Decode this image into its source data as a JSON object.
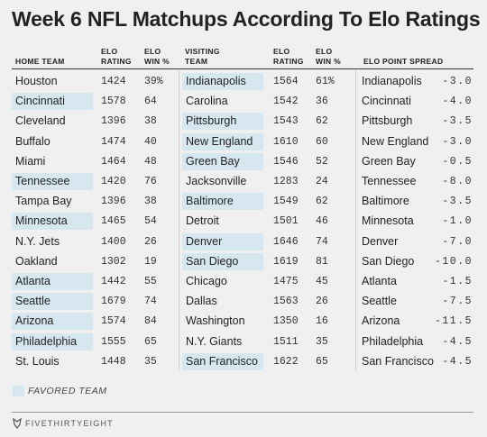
{
  "title": "Week 6 NFL Matchups According To Elo Ratings",
  "headers": {
    "home_team": "HOME TEAM",
    "elo_rating_home": "ELO\nRATING",
    "elo_win_home": "ELO\nWIN %",
    "visiting_team": "VISITING\nTEAM",
    "elo_rating_visit": "ELO\nRATING",
    "elo_win_visit": "ELO\nWIN %",
    "elo_point_spread": "ELO POINT SPREAD"
  },
  "chart_data": {
    "type": "table",
    "columns": [
      "Home team",
      "Elo rating",
      "Elo win %",
      "Visiting team",
      "Elo rating",
      "Elo win %",
      "Elo point spread"
    ],
    "rows": [
      {
        "home": "Houston",
        "home_elo": "1424",
        "home_win": "39%",
        "visit": "Indianapolis",
        "visit_elo": "1564",
        "visit_win": "61%",
        "spread_team": "Indianapolis",
        "spread": "-3.0",
        "favored": "visit"
      },
      {
        "home": "Cincinnati",
        "home_elo": "1578",
        "home_win": "64",
        "visit": "Carolina",
        "visit_elo": "1542",
        "visit_win": "36",
        "spread_team": "Cincinnati",
        "spread": "-4.0",
        "favored": "home"
      },
      {
        "home": "Cleveland",
        "home_elo": "1396",
        "home_win": "38",
        "visit": "Pittsburgh",
        "visit_elo": "1543",
        "visit_win": "62",
        "spread_team": "Pittsburgh",
        "spread": "-3.5",
        "favored": "visit"
      },
      {
        "home": "Buffalo",
        "home_elo": "1474",
        "home_win": "40",
        "visit": "New England",
        "visit_elo": "1610",
        "visit_win": "60",
        "spread_team": "New England",
        "spread": "-3.0",
        "favored": "visit"
      },
      {
        "home": "Miami",
        "home_elo": "1464",
        "home_win": "48",
        "visit": "Green Bay",
        "visit_elo": "1546",
        "visit_win": "52",
        "spread_team": "Green Bay",
        "spread": "-0.5",
        "favored": "visit"
      },
      {
        "home": "Tennessee",
        "home_elo": "1420",
        "home_win": "76",
        "visit": "Jacksonville",
        "visit_elo": "1283",
        "visit_win": "24",
        "spread_team": "Tennessee",
        "spread": "-8.0",
        "favored": "home"
      },
      {
        "home": "Tampa Bay",
        "home_elo": "1396",
        "home_win": "38",
        "visit": "Baltimore",
        "visit_elo": "1549",
        "visit_win": "62",
        "spread_team": "Baltimore",
        "spread": "-3.5",
        "favored": "visit"
      },
      {
        "home": "Minnesota",
        "home_elo": "1465",
        "home_win": "54",
        "visit": "Detroit",
        "visit_elo": "1501",
        "visit_win": "46",
        "spread_team": "Minnesota",
        "spread": "-1.0",
        "favored": "home"
      },
      {
        "home": "N.Y. Jets",
        "home_elo": "1400",
        "home_win": "26",
        "visit": "Denver",
        "visit_elo": "1646",
        "visit_win": "74",
        "spread_team": "Denver",
        "spread": "-7.0",
        "favored": "visit"
      },
      {
        "home": "Oakland",
        "home_elo": "1302",
        "home_win": "19",
        "visit": "San Diego",
        "visit_elo": "1619",
        "visit_win": "81",
        "spread_team": "San Diego",
        "spread": "-10.0",
        "favored": "visit"
      },
      {
        "home": "Atlanta",
        "home_elo": "1442",
        "home_win": "55",
        "visit": "Chicago",
        "visit_elo": "1475",
        "visit_win": "45",
        "spread_team": "Atlanta",
        "spread": "-1.5",
        "favored": "home"
      },
      {
        "home": "Seattle",
        "home_elo": "1679",
        "home_win": "74",
        "visit": "Dallas",
        "visit_elo": "1563",
        "visit_win": "26",
        "spread_team": "Seattle",
        "spread": "-7.5",
        "favored": "home"
      },
      {
        "home": "Arizona",
        "home_elo": "1574",
        "home_win": "84",
        "visit": "Washington",
        "visit_elo": "1350",
        "visit_win": "16",
        "spread_team": "Arizona",
        "spread": "-11.5",
        "favored": "home"
      },
      {
        "home": "Philadelphia",
        "home_elo": "1555",
        "home_win": "65",
        "visit": "N.Y. Giants",
        "visit_elo": "1511",
        "visit_win": "35",
        "spread_team": "Philadelphia",
        "spread": "-4.5",
        "favored": "home"
      },
      {
        "home": "St. Louis",
        "home_elo": "1448",
        "home_win": "35",
        "visit": "San Francisco",
        "visit_elo": "1622",
        "visit_win": "65",
        "spread_team": "San Francisco",
        "spread": "-4.5",
        "favored": "visit"
      }
    ]
  },
  "colors": {
    "favored": "#d6e7f0",
    "background": "#f0f0f0",
    "text": "#222222"
  },
  "legend": {
    "label": "FAVORED TEAM"
  },
  "footer": {
    "brand": "FIVETHIRTYEIGHT",
    "icon": "fivethirtyeight-fox-icon"
  }
}
